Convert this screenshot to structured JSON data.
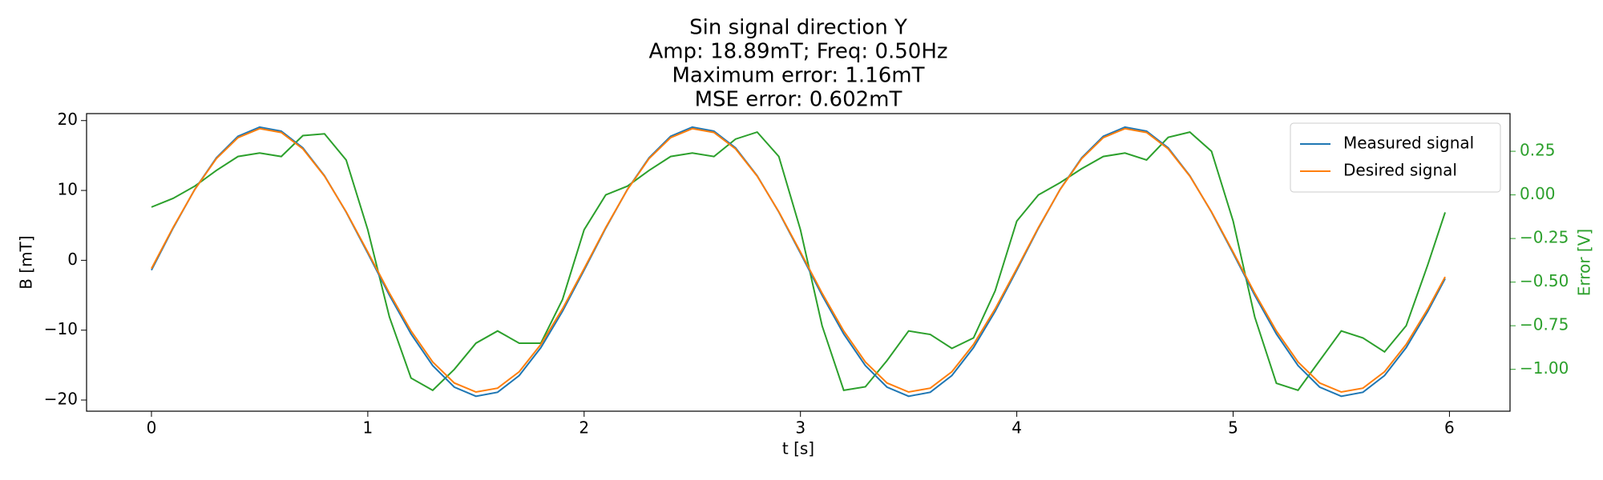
{
  "chart_data": {
    "type": "line",
    "title": [
      "Sin signal direction Y",
      "Amp: 18.89mT; Freq: 0.50Hz",
      "Maximum error: 1.16mT",
      "MSE error: 0.602mT"
    ],
    "xlabel": "t [s]",
    "ylabel": "B [mT]",
    "y2label": "Error [V]",
    "y2color": "#2ca02c",
    "legend": "upper right",
    "xlim": [
      -0.3,
      6.28
    ],
    "ylim": [
      -21.6,
      21.0
    ],
    "y2lim": [
      -1.24,
      0.466
    ],
    "xticks": [
      0,
      1,
      2,
      3,
      4,
      5,
      6
    ],
    "yticks": [
      {
        "value": -20,
        "label": "−20"
      },
      {
        "value": -10,
        "label": "−10"
      },
      0,
      10,
      20
    ],
    "y2ticks": [
      {
        "value": -1.0,
        "label": "−1.00"
      },
      {
        "value": -0.75,
        "label": "−0.75"
      },
      {
        "value": -0.5,
        "label": "−0.50"
      },
      {
        "value": -0.25,
        "label": "−0.25"
      },
      {
        "value": 0,
        "label": "0.00"
      },
      0.25
    ],
    "x": [
      0,
      0.1,
      0.2,
      0.3,
      0.4,
      0.5,
      0.6,
      0.7,
      0.8,
      0.9,
      1.0,
      1.1,
      1.2,
      1.3,
      1.4,
      1.5,
      1.6,
      1.7,
      1.8,
      1.9,
      2.0,
      2.1,
      2.2,
      2.3,
      2.4,
      2.5,
      2.6,
      2.7,
      2.8,
      2.9,
      3.0,
      3.1,
      3.2,
      3.3,
      3.4,
      3.5,
      3.6,
      3.7,
      3.8,
      3.9,
      4.0,
      4.1,
      4.2,
      4.3,
      4.4,
      4.5,
      4.6,
      4.7,
      4.8,
      4.9,
      5.0,
      5.1,
      5.2,
      5.3,
      5.4,
      5.5,
      5.6,
      5.7,
      5.8,
      5.9,
      5.98
    ],
    "series": [
      {
        "name": "Measured signal",
        "color": "#1f77b4",
        "values": [
          -1.41,
          4.6,
          10.14,
          14.67,
          17.75,
          19.06,
          18.49,
          16.09,
          12.1,
          6.9,
          1.01,
          -5.0,
          -10.54,
          -15.07,
          -18.15,
          -19.46,
          -18.89,
          -16.49,
          -12.5,
          -7.3,
          -1.41,
          4.6,
          10.14,
          14.67,
          17.75,
          19.06,
          18.49,
          16.09,
          12.1,
          6.9,
          1.01,
          -5.0,
          -10.54,
          -15.07,
          -18.15,
          -19.46,
          -18.89,
          -16.49,
          -12.5,
          -7.3,
          -1.41,
          4.6,
          10.14,
          14.67,
          17.75,
          19.06,
          18.49,
          16.09,
          12.1,
          6.9,
          1.01,
          -5.0,
          -10.54,
          -15.07,
          -18.15,
          -19.46,
          -18.89,
          -16.49,
          -12.5,
          -7.3,
          -2.62
        ]
      },
      {
        "name": "Desired signal",
        "color": "#ff7f0e",
        "values": [
          -1.19,
          4.7,
          10.12,
          14.55,
          17.56,
          18.85,
          18.3,
          15.95,
          12.04,
          6.95,
          1.19,
          -4.7,
          -10.12,
          -14.55,
          -17.56,
          -18.85,
          -18.3,
          -15.95,
          -12.04,
          -6.95,
          -1.19,
          4.7,
          10.12,
          14.55,
          17.56,
          18.85,
          18.3,
          15.95,
          12.04,
          6.95,
          1.19,
          -4.7,
          -10.12,
          -14.55,
          -17.56,
          -18.85,
          -18.3,
          -15.95,
          -12.04,
          -6.95,
          -1.19,
          4.7,
          10.12,
          14.55,
          17.56,
          18.85,
          18.3,
          15.95,
          12.04,
          6.95,
          1.19,
          -4.7,
          -10.12,
          -14.55,
          -17.56,
          -18.85,
          -18.3,
          -15.95,
          -12.04,
          -6.95,
          -2.37
        ]
      },
      {
        "color": "#2ca02c",
        "axis": "y2",
        "values": [
          -0.07,
          -0.02,
          0.05,
          0.14,
          0.22,
          0.24,
          0.22,
          0.34,
          0.35,
          0.2,
          -0.2,
          -0.7,
          -1.05,
          -1.12,
          -1.0,
          -0.85,
          -0.78,
          -0.85,
          -0.85,
          -0.6,
          -0.2,
          0.0,
          0.05,
          0.14,
          0.22,
          0.24,
          0.22,
          0.32,
          0.36,
          0.22,
          -0.2,
          -0.75,
          -1.12,
          -1.1,
          -0.95,
          -0.78,
          -0.8,
          -0.88,
          -0.82,
          -0.55,
          -0.15,
          0.0,
          0.07,
          0.15,
          0.22,
          0.24,
          0.2,
          0.33,
          0.36,
          0.25,
          -0.15,
          -0.7,
          -1.08,
          -1.12,
          -0.95,
          -0.78,
          -0.82,
          -0.9,
          -0.75,
          -0.4,
          -0.1
        ]
      }
    ]
  }
}
